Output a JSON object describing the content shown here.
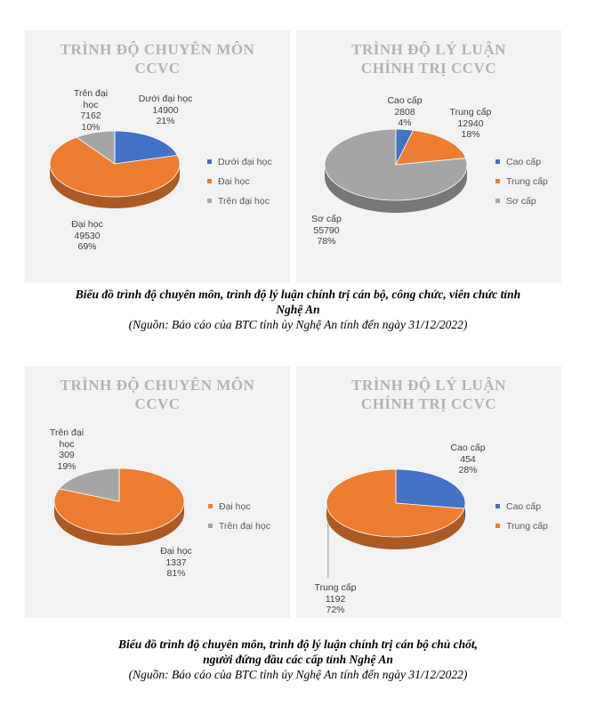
{
  "chart_data": [
    {
      "type": "pie",
      "title": "TRÌNH ĐỘ CHUYÊN MÔN CCVC",
      "title_lines": [
        "TRÌNH ĐỘ CHUYÊN MÔN",
        "CCVC"
      ],
      "categories": [
        "Dưới đại học",
        "Đại học",
        "Trên đại học"
      ],
      "values": [
        14900,
        49530,
        7162
      ],
      "percent_labels": [
        "21%",
        "69%",
        "10%"
      ],
      "colors": [
        "#4472c4",
        "#ed7d31",
        "#a5a5a5"
      ],
      "legend_position": "right"
    },
    {
      "type": "pie",
      "title": "TRÌNH ĐỘ LÝ LUẬN CHÍNH TRỊ CCVC",
      "title_lines": [
        "TRÌNH ĐỘ LÝ LUẬN",
        "CHÍNH TRỊ CCVC"
      ],
      "categories": [
        "Cao cấp",
        "Trung cấp",
        "Sơ cấp"
      ],
      "values": [
        2808,
        12940,
        55790
      ],
      "percent_labels": [
        "4%",
        "18%",
        "78%"
      ],
      "colors": [
        "#4472c4",
        "#ed7d31",
        "#a5a5a5"
      ],
      "legend_position": "right"
    },
    {
      "type": "pie",
      "title": "TRÌNH ĐỘ CHUYÊN MÔN CCVC",
      "title_lines": [
        "TRÌNH ĐỘ CHUYÊN MÔN",
        "CCVC"
      ],
      "categories": [
        "Đại học",
        "Trên đại học"
      ],
      "values": [
        1337,
        309
      ],
      "percent_labels": [
        "81%",
        "19%"
      ],
      "colors": [
        "#ed7d31",
        "#a5a5a5"
      ],
      "legend_position": "right"
    },
    {
      "type": "pie",
      "title": "TRÌNH ĐỘ LÝ LUẬN CHÍNH TRỊ CCVC",
      "title_lines": [
        "TRÌNH ĐỘ LÝ LUẬN",
        "CHÍNH TRỊ CCVC"
      ],
      "categories": [
        "Cao cấp",
        "Trung cấp"
      ],
      "values": [
        454,
        1192
      ],
      "percent_labels": [
        "28%",
        "72%"
      ],
      "colors": [
        "#4472c4",
        "#ed7d31"
      ],
      "legend_position": "right"
    }
  ],
  "captions": {
    "fig1_line1": "Biểu đồ trình độ chuyên môn, trình độ lý luận chính trị cán bộ, công chức, viên chức tỉnh",
    "fig1_line2": "Nghệ An",
    "fig1_source": "(Nguồn: Báo cáo của BTC tỉnh ủy Nghệ An tính đến ngày 31/12/2022)",
    "fig2_line1": "Biểu đồ trình độ chuyên môn, trình độ lý luận chính trị cán bộ chủ chốt,",
    "fig2_line2": "người đứng đầu các cấp tỉnh Nghệ An",
    "fig2_source": "(Nguồn: Báo cáo của BTC tỉnh ủy Nghệ An tính đến ngày 31/12/2022)"
  }
}
